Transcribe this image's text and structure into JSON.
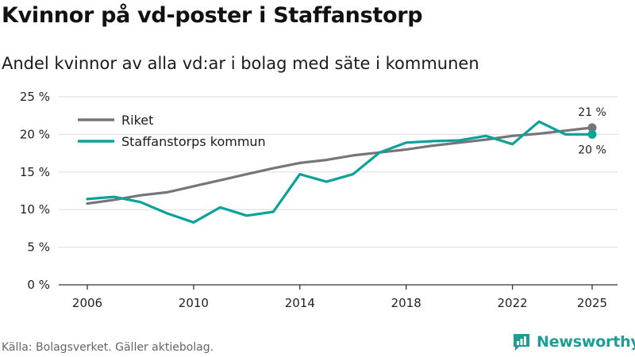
{
  "title": "Kvinnor på vd-poster i Staffanstorp",
  "subtitle": "Andel kvinnor av alla vd:ar i bolag med säte i kommunen",
  "source": "Källa: Bolagsverket. Gäller aktiebolag.",
  "brand": {
    "name": "Newsworthy",
    "icon": "newsworthy-logo-icon"
  },
  "colors": {
    "riket": "#77757a",
    "staffanstorp": "#0aa29a",
    "grid": "#dddddd",
    "axis": "#333333"
  },
  "chart_data": {
    "type": "line",
    "title": "Kvinnor på vd-poster i Staffanstorp",
    "subtitle": "Andel kvinnor av alla vd:ar i bolag med säte i kommunen",
    "xlabel": "",
    "ylabel": "",
    "xlim": [
      2006,
      2025
    ],
    "ylim": [
      0,
      25
    ],
    "grid": true,
    "legend_position": "top-left",
    "x_ticks": [
      2006,
      2010,
      2014,
      2018,
      2022,
      2025
    ],
    "x_tick_labels": [
      "2006",
      "2010",
      "2014",
      "2018",
      "2022",
      "2025"
    ],
    "y_ticks": [
      0,
      5,
      10,
      15,
      20,
      25
    ],
    "y_tick_labels": [
      "0 %",
      "5 %",
      "10 %",
      "15 %",
      "20 %",
      "25 %"
    ],
    "x": [
      2006,
      2007,
      2008,
      2009,
      2010,
      2011,
      2012,
      2013,
      2014,
      2015,
      2016,
      2017,
      2018,
      2019,
      2020,
      2021,
      2022,
      2023,
      2024,
      2025
    ],
    "series": [
      {
        "name": "Riket",
        "color": "#77757a",
        "values": [
          10.8,
          11.3,
          11.9,
          12.3,
          13.1,
          13.9,
          14.7,
          15.5,
          16.2,
          16.6,
          17.2,
          17.6,
          18.0,
          18.5,
          18.9,
          19.3,
          19.8,
          20.1,
          20.5,
          20.9
        ],
        "end_label": "21 %"
      },
      {
        "name": "Staffanstorps kommun",
        "color": "#0aa29a",
        "values": [
          11.4,
          11.7,
          11.0,
          9.5,
          8.3,
          10.3,
          9.2,
          9.7,
          14.7,
          13.7,
          14.7,
          17.6,
          18.9,
          19.1,
          19.2,
          19.8,
          18.7,
          21.7,
          20.0,
          20.0
        ],
        "end_label": "20 %"
      }
    ]
  }
}
